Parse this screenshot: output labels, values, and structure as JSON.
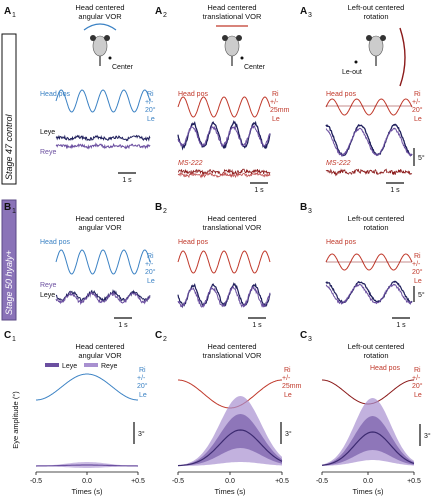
{
  "colors": {
    "blue": "#3b82c4",
    "red": "#c0392b",
    "navy": "#1f1f5c",
    "purple": "#6b4fa0",
    "lilac": "#a890d0",
    "black": "#111111"
  },
  "panel_letters": {
    "A1": [
      "A",
      "1"
    ],
    "A2": [
      "A",
      "2"
    ],
    "A3": [
      "A",
      "3"
    ],
    "B1": [
      "B",
      "1"
    ],
    "B2": [
      "B",
      "2"
    ],
    "B3": [
      "B",
      "3"
    ],
    "C1": [
      "C",
      "1"
    ],
    "C2": [
      "C",
      "2"
    ],
    "C3": [
      "C",
      "3"
    ]
  },
  "row_labels": {
    "stage47": "Stage 47 control",
    "stage50": "Stage 50 hyaly+"
  },
  "titles": {
    "A1": [
      "Head centered",
      "angular VOR"
    ],
    "A2": [
      "Head centered",
      "translational VOR"
    ],
    "A3": [
      "Left-out centered",
      "rotation"
    ],
    "B1": [
      "Head centered",
      "angular VOR"
    ],
    "B2": [
      "Head centered",
      "translational VOR"
    ],
    "B3": [
      "Left-out centered",
      "rotation"
    ],
    "C1": [
      "Head centered",
      "angular VOR"
    ],
    "C2": [
      "Head centered",
      "translational VOR"
    ],
    "C3": [
      "Left-out centered",
      "rotation"
    ]
  },
  "schematic": {
    "center": "Center",
    "le_out": "Le-out"
  },
  "traces": {
    "head_pos": "Head pos",
    "leye": "Leye",
    "reye": "Reye",
    "ms222": "MS-222"
  },
  "amplitudes": {
    "ri": "Ri",
    "le": "Le",
    "ang": "+/-\n20°",
    "trans": "+/-\n25mm"
  },
  "scale": {
    "time_1s": "1 s",
    "deg_5": "5°",
    "deg_3": "3°"
  },
  "avg_axes": {
    "ylabel": "Eye amplitude (°)",
    "xlabel": "Times (s)",
    "ticks_c1": [
      "-0.5",
      "0.0",
      "+0.5"
    ],
    "ticks_c2": [
      "-0.5",
      "0.0",
      "+0.5"
    ],
    "ticks_c3": [
      "-0.5",
      "0.0",
      "+0.5"
    ],
    "legend_leye": "Leye",
    "legend_reye": "Reye"
  }
}
